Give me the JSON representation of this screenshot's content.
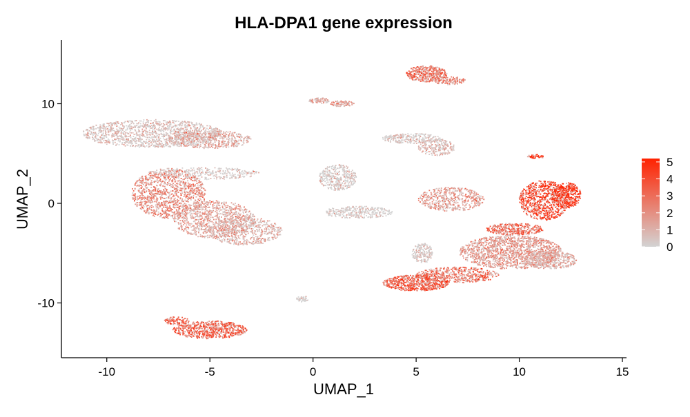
{
  "chart_data": {
    "type": "scatter",
    "title": "HLA-DPA1 gene expression",
    "xlabel": "UMAP_1",
    "ylabel": "UMAP_2",
    "xlim": [
      -12.2,
      15.2
    ],
    "ylim": [
      -15.5,
      16.4
    ],
    "x_ticks": [
      {
        "value": -10,
        "label": "-10"
      },
      {
        "value": -5,
        "label": "-5"
      },
      {
        "value": 0,
        "label": "0"
      },
      {
        "value": 5,
        "label": "5"
      },
      {
        "value": 10,
        "label": "10"
      },
      {
        "value": 15,
        "label": "15"
      }
    ],
    "y_ticks": [
      {
        "value": -10,
        "label": "-10"
      },
      {
        "value": 0,
        "label": "0"
      },
      {
        "value": 10,
        "label": "10"
      }
    ],
    "grid": false,
    "color_scale": {
      "low_color": "#d3d3d3",
      "high_color": "#ff2200",
      "min": 0,
      "max": 5.2,
      "ticks": [
        {
          "value": 0,
          "label": "0"
        },
        {
          "value": 1,
          "label": "1"
        },
        {
          "value": 2,
          "label": "2"
        },
        {
          "value": 3,
          "label": "3"
        },
        {
          "value": 4,
          "label": "4"
        },
        {
          "value": 5,
          "label": "5"
        }
      ],
      "legend_position": "right"
    },
    "clusters": [
      {
        "cx": -7.8,
        "cy": 7.0,
        "rx": 3.4,
        "ry": 1.4,
        "n": 1300,
        "expr": 0.6
      },
      {
        "cx": -5.0,
        "cy": 6.4,
        "rx": 2.0,
        "ry": 0.9,
        "n": 500,
        "expr": 1.3
      },
      {
        "cx": -7.0,
        "cy": 1.0,
        "rx": 1.8,
        "ry": 2.5,
        "n": 1100,
        "expr": 2.4
      },
      {
        "cx": -4.8,
        "cy": -1.6,
        "rx": 2.0,
        "ry": 1.9,
        "n": 900,
        "expr": 1.6
      },
      {
        "cx": -3.3,
        "cy": -2.8,
        "rx": 1.8,
        "ry": 1.4,
        "n": 600,
        "expr": 1.2
      },
      {
        "cx": -5.2,
        "cy": 3.0,
        "rx": 2.6,
        "ry": 0.6,
        "n": 300,
        "expr": 0.3
      },
      {
        "cx": -5.0,
        "cy": -12.7,
        "rx": 1.8,
        "ry": 0.9,
        "n": 650,
        "expr": 3.6
      },
      {
        "cx": -6.6,
        "cy": -11.8,
        "rx": 0.6,
        "ry": 0.4,
        "n": 90,
        "expr": 3.4
      },
      {
        "cx": 1.2,
        "cy": 2.6,
        "rx": 0.9,
        "ry": 1.3,
        "n": 380,
        "expr": 0.15
      },
      {
        "cx": 2.2,
        "cy": -0.9,
        "rx": 1.7,
        "ry": 0.6,
        "n": 300,
        "expr": 0.1
      },
      {
        "cx": 0.3,
        "cy": 10.3,
        "rx": 0.5,
        "ry": 0.3,
        "n": 80,
        "expr": 1.4
      },
      {
        "cx": 1.4,
        "cy": 10.0,
        "rx": 0.6,
        "ry": 0.3,
        "n": 80,
        "expr": 1.8
      },
      {
        "cx": -0.5,
        "cy": -9.6,
        "rx": 0.3,
        "ry": 0.3,
        "n": 40,
        "expr": 0.1
      },
      {
        "cx": 5.5,
        "cy": 13.0,
        "rx": 1.0,
        "ry": 0.8,
        "n": 420,
        "expr": 3.0
      },
      {
        "cx": 6.6,
        "cy": 12.3,
        "rx": 0.8,
        "ry": 0.4,
        "n": 120,
        "expr": 2.6
      },
      {
        "cx": 4.8,
        "cy": 6.5,
        "rx": 1.5,
        "ry": 0.5,
        "n": 260,
        "expr": 0.4
      },
      {
        "cx": 6.0,
        "cy": 5.6,
        "rx": 0.9,
        "ry": 0.8,
        "n": 200,
        "expr": 0.9
      },
      {
        "cx": 6.7,
        "cy": 0.4,
        "rx": 1.6,
        "ry": 1.2,
        "n": 500,
        "expr": 1.9
      },
      {
        "cx": 5.3,
        "cy": -5.0,
        "rx": 0.5,
        "ry": 1.0,
        "n": 180,
        "expr": 0.3
      },
      {
        "cx": 7.0,
        "cy": -7.2,
        "rx": 2.0,
        "ry": 0.8,
        "n": 500,
        "expr": 3.1
      },
      {
        "cx": 5.0,
        "cy": -8.0,
        "rx": 1.6,
        "ry": 0.8,
        "n": 650,
        "expr": 3.7
      },
      {
        "cx": 9.6,
        "cy": -4.9,
        "rx": 2.5,
        "ry": 1.7,
        "n": 1500,
        "expr": 1.9
      },
      {
        "cx": 11.5,
        "cy": -5.7,
        "rx": 1.3,
        "ry": 0.9,
        "n": 400,
        "expr": 1.3
      },
      {
        "cx": 11.2,
        "cy": 0.3,
        "rx": 1.2,
        "ry": 2.0,
        "n": 800,
        "expr": 4.4
      },
      {
        "cx": 12.3,
        "cy": 0.8,
        "rx": 0.7,
        "ry": 1.3,
        "n": 400,
        "expr": 4.8
      },
      {
        "cx": 10.8,
        "cy": 4.7,
        "rx": 0.4,
        "ry": 0.2,
        "n": 40,
        "expr": 4.6
      },
      {
        "cx": 9.8,
        "cy": -2.6,
        "rx": 1.4,
        "ry": 0.6,
        "n": 350,
        "expr": 3.3
      }
    ]
  }
}
